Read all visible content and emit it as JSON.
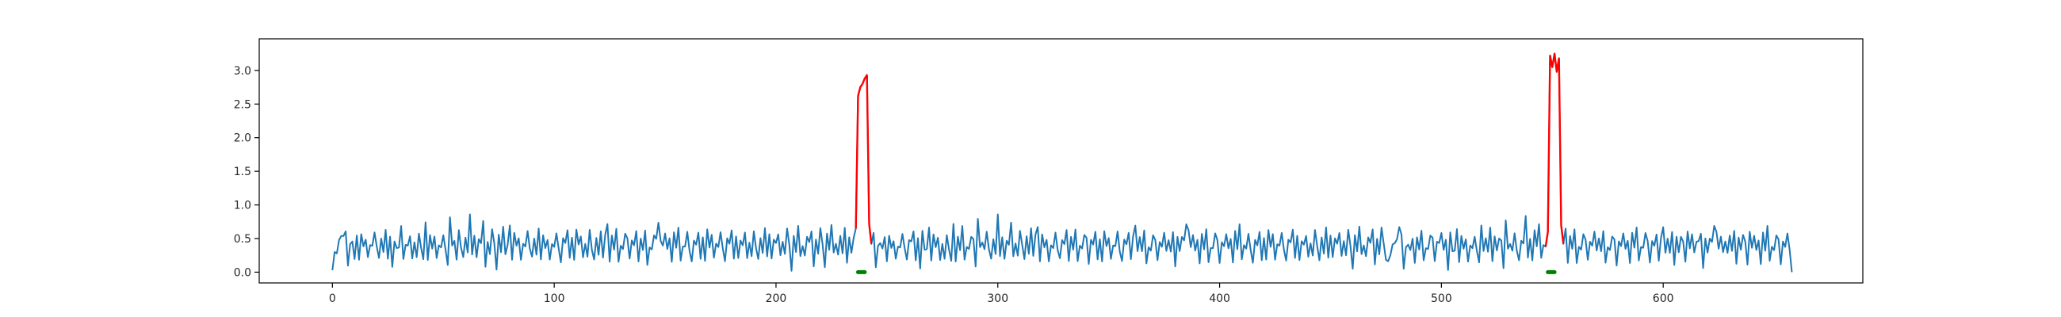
{
  "chart_data": {
    "type": "line",
    "title": "",
    "xlabel": "",
    "ylabel": "",
    "xlim": [
      -33,
      690
    ],
    "ylim": [
      -0.16,
      3.47
    ],
    "xticks": [
      0,
      100,
      200,
      300,
      400,
      500,
      600
    ],
    "yticks": [
      0.0,
      0.5,
      1.0,
      1.5,
      2.0,
      2.5,
      3.0
    ],
    "xtick_labels": [
      "0",
      "100",
      "200",
      "300",
      "400",
      "500",
      "600"
    ],
    "ytick_labels": [
      "0.0",
      "0.5",
      "1.0",
      "1.5",
      "2.0",
      "2.5",
      "3.0"
    ],
    "grid": false,
    "legend": "none",
    "series": [
      {
        "color": "#1f77b4",
        "role": "signal",
        "x_start": 0,
        "x_end": 658,
        "x_step": 1,
        "values": [
          0.12,
          0.28,
          0.33,
          0.42,
          0.55,
          0.62,
          0.58,
          0.14,
          0.35,
          0.46,
          0.27,
          0.51,
          0.22,
          0.49,
          0.38,
          0.55,
          0.18,
          0.43,
          0.31,
          0.58,
          0.44,
          0.16,
          0.52,
          0.39,
          0.61,
          0.25,
          0.47,
          0.09,
          0.54,
          0.33,
          0.41,
          0.62,
          0.2,
          0.48,
          0.36,
          0.57,
          0.13,
          0.44,
          0.29,
          0.53,
          0.39,
          0.11,
          0.73,
          0.24,
          0.5,
          0.37,
          0.62,
          0.19,
          0.45,
          0.31,
          0.56,
          0.42,
          0.08,
          0.86,
          0.33,
          0.47,
          0.26,
          0.59,
          0.4,
          0.15,
          0.51,
          0.36,
          0.84,
          0.29,
          0.46,
          0.21,
          0.55,
          0.38,
          0.78,
          0.17,
          0.43,
          0.32,
          0.58,
          0.44,
          0.12,
          0.53,
          0.34,
          0.61,
          0.27,
          0.48,
          0.66,
          0.22,
          0.51,
          0.39,
          0.57,
          0.14,
          0.45,
          0.3,
          0.6,
          0.41,
          0.18,
          0.52,
          0.35,
          0.63,
          0.24,
          0.49,
          0.37,
          0.56,
          0.16,
          0.46,
          0.31,
          0.58,
          0.43,
          0.11,
          0.54,
          0.36,
          0.62,
          0.28,
          0.47,
          0.21,
          0.55,
          0.4,
          0.59,
          0.17,
          0.44,
          0.32,
          0.61,
          0.38,
          0.13,
          0.52,
          0.34,
          0.58,
          0.26,
          0.49,
          0.72,
          0.23,
          0.51,
          0.37,
          0.57,
          0.15,
          0.46,
          0.3,
          0.6,
          0.42,
          0.19,
          0.53,
          0.35,
          0.63,
          0.25,
          0.48,
          0.38,
          0.56,
          0.12,
          0.45,
          0.31,
          0.59,
          0.43,
          0.74,
          0.54,
          0.36,
          0.61,
          0.27,
          0.5,
          0.22,
          0.55,
          0.39,
          0.58,
          0.16,
          0.44,
          0.33,
          0.62,
          0.41,
          0.14,
          0.52,
          0.35,
          0.6,
          0.28,
          0.49,
          0.21,
          0.57,
          0.37,
          0.63,
          0.18,
          0.46,
          0.3,
          0.59,
          0.42,
          0.12,
          0.53,
          0.34,
          0.61,
          0.26,
          0.48,
          0.23,
          0.56,
          0.38,
          0.64,
          0.15,
          0.45,
          0.32,
          0.58,
          0.4,
          0.13,
          0.51,
          0.36,
          0.62,
          0.27,
          0.49,
          0.2,
          0.55,
          0.39,
          0.59,
          0.17,
          0.44,
          0.33,
          0.6,
          0.43,
          0.11,
          0.52,
          0.35,
          0.63,
          0.25,
          0.47,
          0.22,
          0.57,
          0.38,
          0.61,
          0.16,
          0.45,
          0.31,
          0.58,
          0.41,
          0.14,
          0.53,
          0.36,
          0.62,
          0.28,
          0.48,
          0.21,
          0.56,
          0.37,
          0.64,
          0.19,
          0.46,
          0.3,
          0.59,
          0.42,
          0.25
        ],
        "segments_note": "first segment x=0..235"
      }
    ],
    "anomalies": [
      {
        "x_start": 236,
        "x_end": 243,
        "peak": 2.93
      },
      {
        "x_start": 547,
        "x_end": 555,
        "peak": 3.25
      }
    ]
  }
}
